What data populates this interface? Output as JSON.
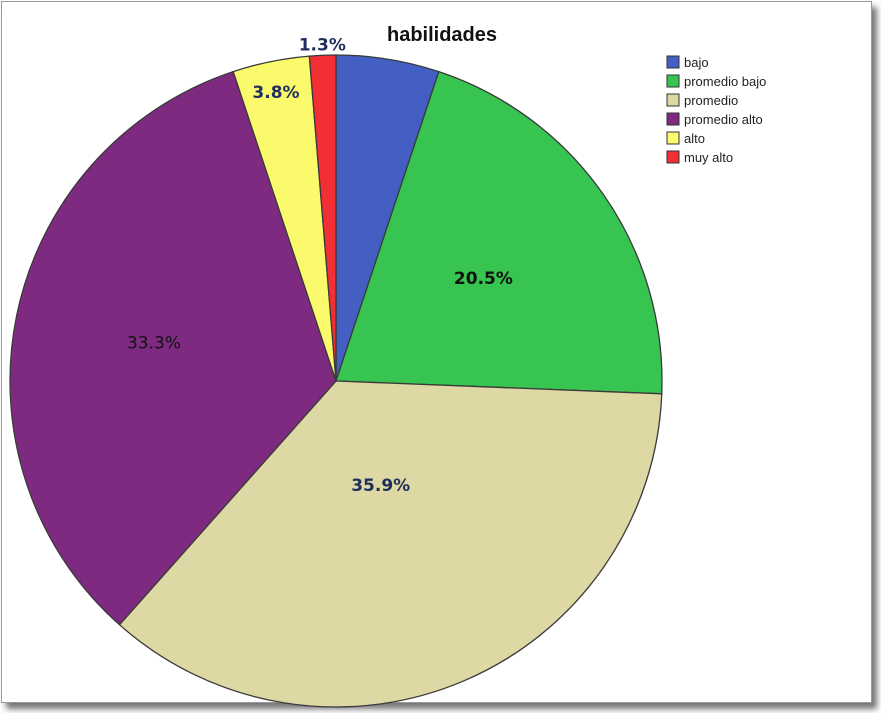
{
  "chart_data": {
    "type": "pie",
    "title": "habilidades",
    "legend_position": "top-right",
    "slices": [
      {
        "label": "bajo",
        "value": 5.1,
        "color": "#435fc3",
        "display": "",
        "label_color": "#1f2f5c",
        "label_bold": true
      },
      {
        "label": "promedio bajo",
        "value": 20.5,
        "color": "#37c451",
        "display": "20.5%",
        "label_color": "#111111",
        "label_bold": true
      },
      {
        "label": "promedio",
        "value": 35.9,
        "color": "#ded8a4",
        "display": "35.9%",
        "label_color": "#1f2f5c",
        "label_bold": true
      },
      {
        "label": "promedio alto",
        "value": 33.3,
        "color": "#7f2a81",
        "display": "33.3%",
        "label_color": "#111111",
        "label_bold": false
      },
      {
        "label": "alto",
        "value": 3.8,
        "color": "#fbfa6c",
        "display": "3.8%",
        "label_color": "#1f2f5c",
        "label_bold": true
      },
      {
        "label": "muy alto",
        "value": 1.3,
        "color": "#f12f34",
        "display": "1.3%",
        "label_color": "#1f2f5c",
        "label_bold": true
      }
    ]
  }
}
